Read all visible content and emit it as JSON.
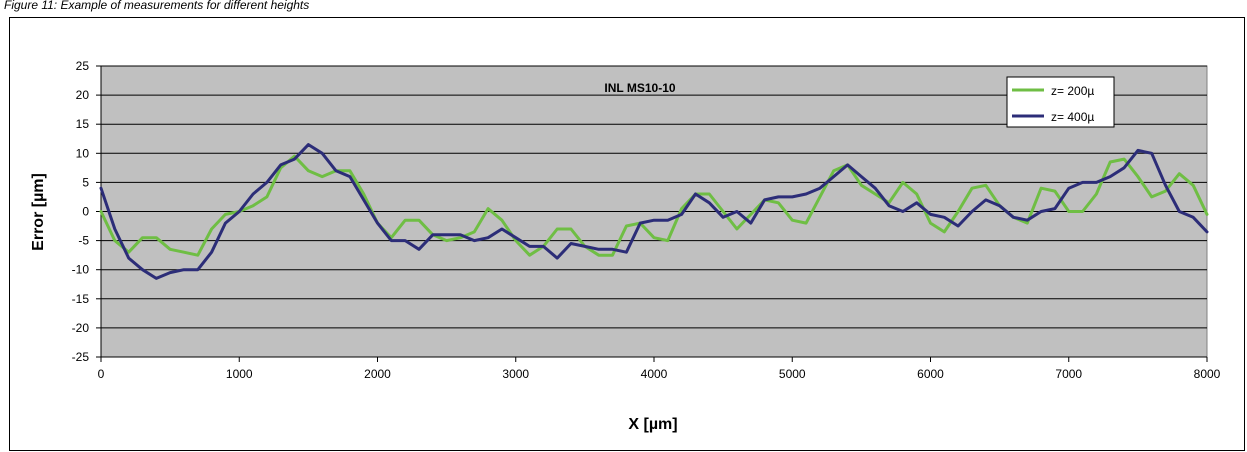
{
  "caption": "Figure 11: Example of measurements for different heights",
  "chart_data": {
    "type": "line",
    "title": "INL MS10-10",
    "xlabel": "X [µm]",
    "ylabel": "Error [µm]",
    "xlim": [
      0,
      8000
    ],
    "ylim": [
      -25,
      25
    ],
    "x_ticks": [
      0,
      1000,
      2000,
      3000,
      4000,
      5000,
      6000,
      7000,
      8000
    ],
    "y_ticks": [
      25,
      20,
      15,
      10,
      5,
      0,
      -5,
      -10,
      -15,
      -20,
      -25
    ],
    "grid": true,
    "legend_position": "top-right",
    "plot_background": "#c0c0c0",
    "series": [
      {
        "name": "z= 200µ",
        "color": "#6fbe44",
        "x": [
          0,
          100,
          200,
          300,
          400,
          500,
          600,
          700,
          800,
          900,
          1000,
          1100,
          1200,
          1300,
          1400,
          1500,
          1600,
          1700,
          1800,
          1900,
          2000,
          2100,
          2200,
          2300,
          2400,
          2500,
          2600,
          2700,
          2800,
          2900,
          3000,
          3100,
          3200,
          3300,
          3400,
          3500,
          3600,
          3700,
          3800,
          3900,
          4000,
          4100,
          4200,
          4300,
          4400,
          4500,
          4600,
          4700,
          4800,
          4900,
          5000,
          5100,
          5200,
          5300,
          5400,
          5500,
          5600,
          5700,
          5800,
          5900,
          6000,
          6100,
          6200,
          6300,
          6400,
          6500,
          6600,
          6700,
          6800,
          6900,
          7000,
          7100,
          7200,
          7300,
          7400,
          7500,
          7600,
          7700,
          7800,
          7900,
          8000
        ],
        "y": [
          0,
          -5,
          -7,
          -4.5,
          -4.5,
          -6.5,
          -7,
          -7.5,
          -3,
          -0.5,
          0,
          1,
          2.5,
          7.5,
          9.5,
          7,
          6,
          7,
          7,
          3,
          -2,
          -4.5,
          -1.5,
          -1.5,
          -4,
          -5,
          -4.5,
          -3.5,
          0.5,
          -1.5,
          -5,
          -7.5,
          -6,
          -3,
          -3,
          -6,
          -7.5,
          -7.5,
          -2.5,
          -2,
          -4.5,
          -5,
          0.5,
          3,
          3,
          0,
          -3,
          -0.5,
          2,
          1.5,
          -1.5,
          -2,
          2.5,
          7,
          8,
          4.5,
          3,
          1.5,
          5,
          3,
          -2,
          -3.5,
          0,
          4,
          4.5,
          1,
          -1,
          -2,
          4,
          3.5,
          0,
          0,
          3,
          8.5,
          9,
          6,
          2.5,
          3.5,
          6.5,
          4.5,
          -0.5
        ]
      },
      {
        "name": "z= 400µ",
        "color": "#2c2d78",
        "x": [
          0,
          100,
          200,
          300,
          400,
          500,
          600,
          700,
          800,
          900,
          1000,
          1100,
          1200,
          1300,
          1400,
          1500,
          1600,
          1700,
          1800,
          1900,
          2000,
          2100,
          2200,
          2300,
          2400,
          2500,
          2600,
          2700,
          2800,
          2900,
          3000,
          3100,
          3200,
          3300,
          3400,
          3500,
          3600,
          3700,
          3800,
          3900,
          4000,
          4100,
          4200,
          4300,
          4400,
          4500,
          4600,
          4700,
          4800,
          4900,
          5000,
          5100,
          5200,
          5300,
          5400,
          5500,
          5600,
          5700,
          5800,
          5900,
          6000,
          6100,
          6200,
          6300,
          6400,
          6500,
          6600,
          6700,
          6800,
          6900,
          7000,
          7100,
          7200,
          7300,
          7400,
          7500,
          7600,
          7700,
          7800,
          7900,
          8000
        ],
        "y": [
          4,
          -3,
          -8,
          -10,
          -11.5,
          -10.5,
          -10,
          -10,
          -7,
          -2,
          0,
          3,
          5,
          8,
          9,
          11.5,
          10,
          7,
          6,
          2,
          -2,
          -5,
          -5,
          -6.5,
          -4,
          -4,
          -4,
          -5,
          -4.5,
          -3,
          -4.5,
          -6,
          -6,
          -8,
          -5.5,
          -6,
          -6.5,
          -6.5,
          -7,
          -2,
          -1.5,
          -1.5,
          -0.5,
          3,
          1.5,
          -1,
          0,
          -2,
          2,
          2.5,
          2.5,
          3,
          4,
          6,
          8,
          6,
          4,
          1,
          0,
          1.5,
          -0.5,
          -1,
          -2.5,
          0,
          2,
          1,
          -1,
          -1.5,
          0,
          0.5,
          4,
          5,
          5,
          6,
          7.5,
          10.5,
          10,
          4.5,
          0,
          -1,
          -3.5
        ]
      }
    ]
  }
}
